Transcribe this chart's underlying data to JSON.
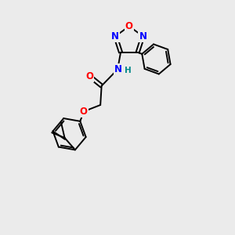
{
  "bg_color": "#ebebeb",
  "line_color": "#000000",
  "bond_width": 1.4,
  "atom_colors": {
    "O": "#ff0000",
    "N": "#0000ff",
    "H": "#008888",
    "C": "#000000"
  },
  "font_size_atom": 8.5
}
